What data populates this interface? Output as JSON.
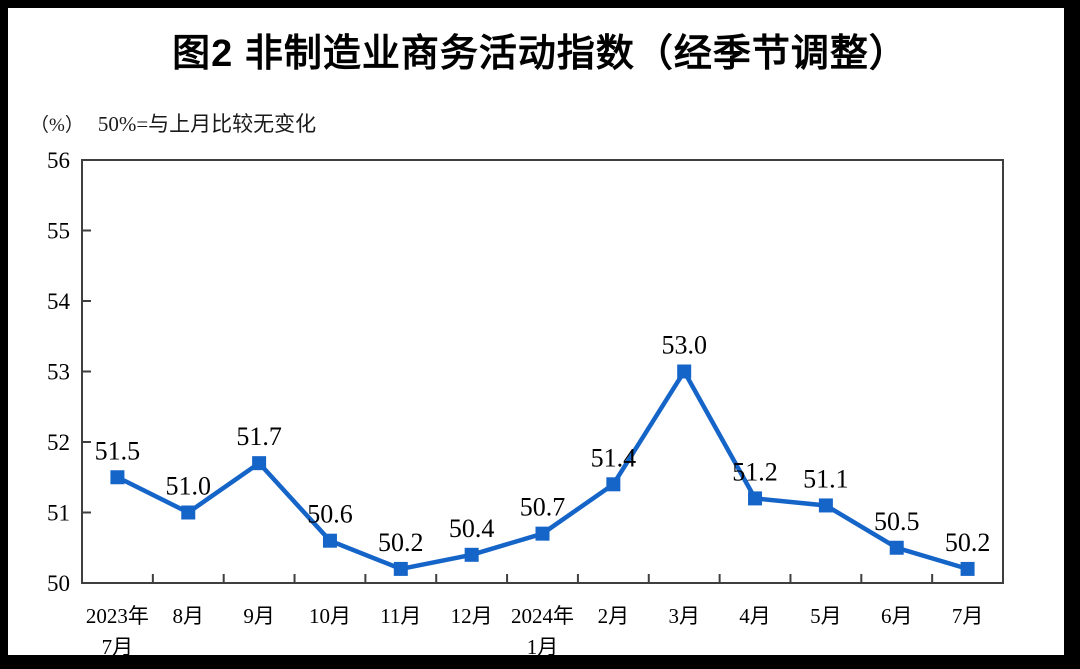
{
  "figure": {
    "title": "图2 非制造业商务活动指数（经季节调整）"
  },
  "subtitle": {
    "unit": "（%）",
    "note": "50%=与上月比较无变化"
  },
  "colors": {
    "line": "#1564c8",
    "marker": "#1564c8",
    "axis": "#3f3f3f",
    "text": "#000000",
    "frame": "#000000",
    "background": "#ffffff"
  },
  "chart_data": {
    "type": "line",
    "title": "图2 非制造业商务活动指数（经季节调整）",
    "subtitle_note": "（%） 50%=与上月比较无变化",
    "categories": [
      "2023年\n7月",
      "8月",
      "9月",
      "10月",
      "11月",
      "12月",
      "2024年\n1月",
      "2月",
      "3月",
      "4月",
      "5月",
      "6月",
      "7月"
    ],
    "values": [
      51.5,
      51.0,
      51.7,
      50.6,
      50.2,
      50.4,
      50.7,
      51.4,
      53.0,
      51.2,
      51.1,
      50.5,
      50.2
    ],
    "data_labels": [
      "51.5",
      "51.0",
      "51.7",
      "50.6",
      "50.2",
      "50.4",
      "50.7",
      "51.4",
      "53.0",
      "51.2",
      "51.1",
      "50.5",
      "50.2"
    ],
    "ylim": [
      50,
      56
    ],
    "yticks": [
      50,
      51,
      52,
      53,
      54,
      55,
      56
    ],
    "xlabel": "",
    "ylabel": "（%）",
    "grid": false,
    "legend_position": "none",
    "marker_shape": "square"
  }
}
